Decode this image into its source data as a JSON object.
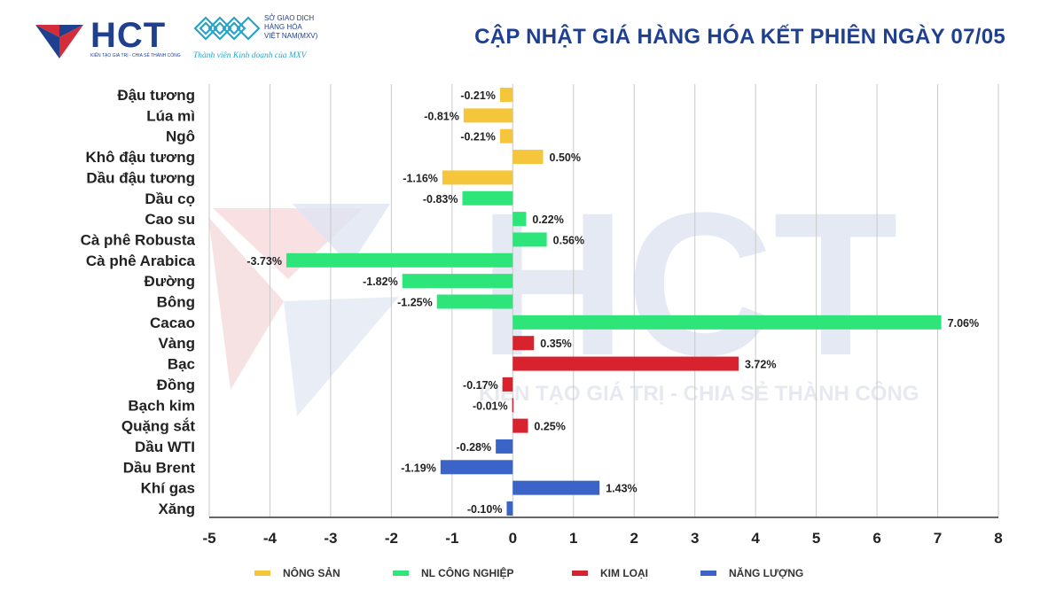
{
  "header": {
    "brand": "HCT",
    "brand_tagline": "KIẾN TẠO GIÁ TRỊ - CHIA SẺ THÀNH CÔNG",
    "exchange_lines": [
      "SỞ GIAO DỊCH",
      "HÀNG HÓA",
      "VIỆT NAM(MXV)"
    ],
    "exchange_sub": "Thành viên Kinh doanh của MXV",
    "title": "CẬP NHẬT GIÁ HÀNG HÓA KẾT PHIÊN NGÀY 07/05"
  },
  "watermark": {
    "text": "HCT",
    "tagline": "KIẾN TẠO GIÁ TRỊ - CHIA SẺ THÀNH CÔNG"
  },
  "colors": {
    "nong_san": "#f5c63c",
    "nl_cong_nghiep": "#2ee57a",
    "kim_loai": "#d8222d",
    "nang_luong": "#3a64c8",
    "brand_blue": "#1f3f8f",
    "brand_red": "#d42d3a"
  },
  "chart_data": {
    "type": "bar",
    "orientation": "horizontal",
    "categories": [
      "Đậu tương",
      "Lúa mì",
      "Ngô",
      "Khô đậu tương",
      "Dầu đậu tương",
      "Dầu cọ",
      "Cao su",
      "Cà phê Robusta",
      "Cà phê Arabica",
      "Đường",
      "Bông",
      "Cacao",
      "Vàng",
      "Bạc",
      "Đồng",
      "Bạch kim",
      "Quặng sắt",
      "Dầu WTI",
      "Dầu Brent",
      "Khí gas",
      "Xăng"
    ],
    "values": [
      -0.21,
      -0.81,
      -0.21,
      0.5,
      -1.16,
      -0.83,
      0.22,
      0.56,
      -3.73,
      -1.82,
      -1.25,
      7.06,
      0.35,
      3.72,
      -0.17,
      -0.01,
      0.25,
      -0.28,
      -1.19,
      1.43,
      -0.1
    ],
    "value_labels": [
      "-0.21%",
      "-0.81%",
      "-0.21%",
      "0.50%",
      "-1.16%",
      "-0.83%",
      "0.22%",
      "0.56%",
      "-3.73%",
      "-1.82%",
      "-1.25%",
      "7.06%",
      "0.35%",
      "3.72%",
      "-0.17%",
      "-0.01%",
      "0.25%",
      "-0.28%",
      "-1.19%",
      "1.43%",
      "-0.10%"
    ],
    "groups": [
      "nong_san",
      "nong_san",
      "nong_san",
      "nong_san",
      "nong_san",
      "nl_cong_nghiep",
      "nl_cong_nghiep",
      "nl_cong_nghiep",
      "nl_cong_nghiep",
      "nl_cong_nghiep",
      "nl_cong_nghiep",
      "nl_cong_nghiep",
      "kim_loai",
      "kim_loai",
      "kim_loai",
      "kim_loai",
      "kim_loai",
      "nang_luong",
      "nang_luong",
      "nang_luong",
      "nang_luong"
    ],
    "legend": [
      {
        "key": "nong_san",
        "label": "NÔNG SẢN"
      },
      {
        "key": "nl_cong_nghiep",
        "label": "NL CÔNG NGHIỆP"
      },
      {
        "key": "kim_loai",
        "label": "KIM LOẠI"
      },
      {
        "key": "nang_luong",
        "label": "NĂNG LƯỢNG"
      }
    ],
    "xlim": [
      -5,
      8
    ],
    "xticks": [
      -5,
      -4,
      -3,
      -2,
      -1,
      0,
      1,
      2,
      3,
      4,
      5,
      6,
      7,
      8
    ],
    "grid": "vertical",
    "legend_position": "bottom"
  }
}
